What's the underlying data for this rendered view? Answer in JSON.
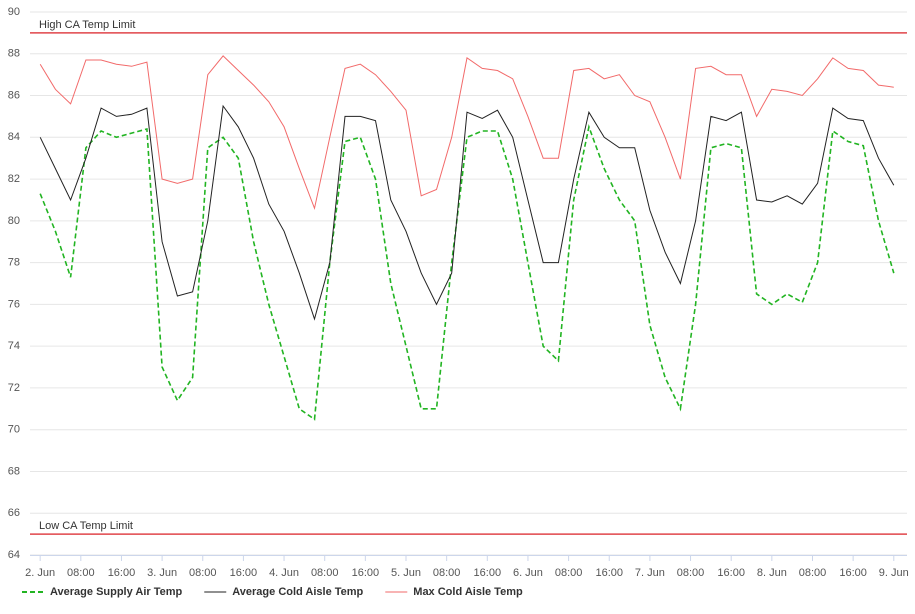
{
  "chart_data": {
    "type": "line",
    "x": [
      0,
      3,
      6,
      9,
      12,
      15,
      18,
      21,
      24,
      27,
      30,
      33,
      36,
      39,
      42,
      45,
      48,
      51,
      54,
      57,
      60,
      63,
      66,
      69,
      72,
      75,
      78,
      81,
      84,
      87,
      90,
      93,
      96,
      99,
      102,
      105,
      108,
      111,
      114,
      117,
      120,
      123,
      126,
      129,
      132,
      135,
      138,
      141,
      144,
      147,
      150,
      153,
      156,
      159,
      162,
      165,
      168
    ],
    "xlim": [
      -2,
      170.6
    ],
    "xticks": [
      {
        "value": 0,
        "label": "2. Jun"
      },
      {
        "value": 8,
        "label": "08:00"
      },
      {
        "value": 16,
        "label": "16:00"
      },
      {
        "value": 24,
        "label": "3. Jun"
      },
      {
        "value": 32,
        "label": "08:00"
      },
      {
        "value": 40,
        "label": "16:00"
      },
      {
        "value": 48,
        "label": "4. Jun"
      },
      {
        "value": 56,
        "label": "08:00"
      },
      {
        "value": 64,
        "label": "16:00"
      },
      {
        "value": 72,
        "label": "5. Jun"
      },
      {
        "value": 80,
        "label": "08:00"
      },
      {
        "value": 88,
        "label": "16:00"
      },
      {
        "value": 96,
        "label": "6. Jun"
      },
      {
        "value": 104,
        "label": "08:00"
      },
      {
        "value": 112,
        "label": "16:00"
      },
      {
        "value": 120,
        "label": "7. Jun"
      },
      {
        "value": 128,
        "label": "08:00"
      },
      {
        "value": 136,
        "label": "16:00"
      },
      {
        "value": 144,
        "label": "8. Jun"
      },
      {
        "value": 152,
        "label": "08:00"
      },
      {
        "value": 160,
        "label": "16:00"
      },
      {
        "value": 168,
        "label": "9. Jun"
      }
    ],
    "ylim": [
      64,
      90
    ],
    "yticks": [
      64,
      66,
      68,
      70,
      72,
      74,
      76,
      78,
      80,
      82,
      84,
      86,
      88,
      90
    ],
    "grid": true,
    "plot_lines": [
      {
        "value": 89,
        "label": "High CA Temp Limit",
        "color": "#e0454a"
      },
      {
        "value": 65,
        "label": "Low CA Temp Limit",
        "color": "#e0454a"
      }
    ],
    "legend": "bottom",
    "series": [
      {
        "name": "Average Supply Air Temp",
        "color": "#22b422",
        "dash": true,
        "values": [
          81.3,
          79.5,
          77.3,
          83.5,
          84.3,
          84,
          84.2,
          84.4,
          73,
          71.4,
          72.5,
          83.5,
          84,
          83,
          79,
          76,
          73.5,
          71,
          70.5,
          78,
          83.8,
          84,
          82,
          77,
          74,
          71,
          71,
          78,
          84,
          84.3,
          84.3,
          82,
          78,
          74,
          73.3,
          81,
          84.5,
          82.5,
          81,
          80,
          75,
          72.5,
          71,
          76,
          83.5,
          83.7,
          83.5,
          76.5,
          76,
          76.5,
          76.1,
          78,
          84.3,
          83.8,
          83.6,
          80,
          77.5
        ]
      },
      {
        "name": "Average Cold Aisle Temp",
        "color": "#222222",
        "dash": false,
        "values": [
          84,
          82.5,
          81,
          83,
          85.4,
          85,
          85.1,
          85.4,
          79,
          76.4,
          76.6,
          80,
          85.5,
          84.5,
          83,
          80.8,
          79.5,
          77.5,
          75.3,
          78,
          85,
          85,
          84.8,
          81,
          79.5,
          77.5,
          76,
          77.5,
          85.2,
          84.9,
          85.3,
          84,
          81,
          78,
          78,
          82,
          85.2,
          84,
          83.5,
          83.5,
          80.5,
          78.5,
          77,
          80,
          85,
          84.8,
          85.2,
          81,
          80.9,
          81.2,
          80.8,
          81.8,
          85.4,
          84.9,
          84.8,
          83,
          81.7
        ]
      },
      {
        "name": "Max Cold Aisle Temp",
        "color": "#f26a6a",
        "dash": false,
        "values": [
          87.5,
          86.3,
          85.6,
          87.7,
          87.7,
          87.5,
          87.4,
          87.6,
          82,
          81.8,
          82,
          87,
          87.9,
          87.2,
          86.5,
          85.7,
          84.5,
          82.5,
          80.6,
          84,
          87.3,
          87.5,
          87,
          86.2,
          85.3,
          81.2,
          81.5,
          84,
          87.8,
          87.3,
          87.2,
          86.8,
          85,
          83,
          83,
          87.2,
          87.3,
          86.8,
          87,
          86,
          85.7,
          84,
          82,
          87.3,
          87.4,
          87,
          87,
          85,
          86.3,
          86.2,
          86,
          86.8,
          87.8,
          87.3,
          87.2,
          86.5,
          86.4
        ]
      }
    ]
  }
}
